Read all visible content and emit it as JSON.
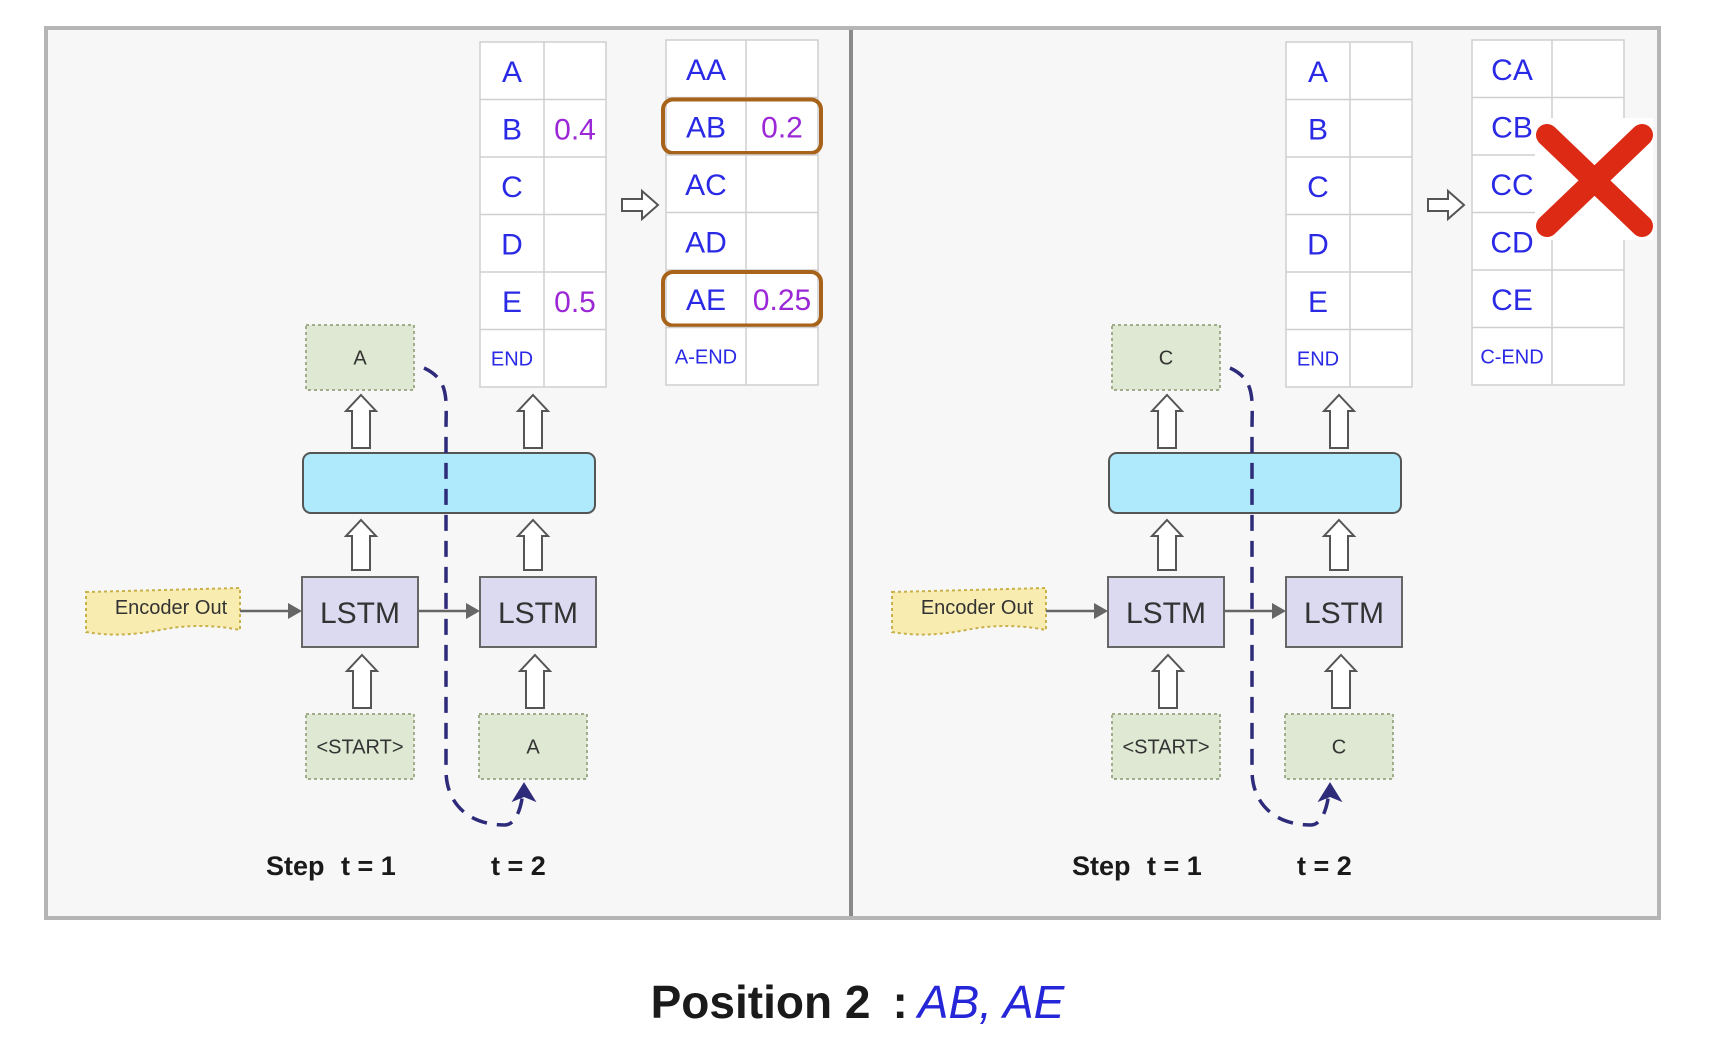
{
  "panels": [
    {
      "id": "left",
      "output_token": "A",
      "input_tokens": [
        "<START>",
        "A"
      ],
      "encoder_label": "Encoder Out",
      "lstm_label": "LSTM",
      "steps": {
        "prefix": "Step",
        "t1": "t = 1",
        "t2": "t = 2"
      },
      "vocab_table": [
        {
          "token": "A",
          "prob": ""
        },
        {
          "token": "B",
          "prob": "0.4"
        },
        {
          "token": "C",
          "prob": ""
        },
        {
          "token": "D",
          "prob": ""
        },
        {
          "token": "E",
          "prob": "0.5"
        },
        {
          "token": "END",
          "prob": ""
        }
      ],
      "seq_table": [
        {
          "token": "AA",
          "prob": "",
          "selected": false
        },
        {
          "token": "AB",
          "prob": "0.2",
          "selected": true
        },
        {
          "token": "AC",
          "prob": "",
          "selected": false
        },
        {
          "token": "AD",
          "prob": "",
          "selected": false
        },
        {
          "token": "AE",
          "prob": "0.25",
          "selected": true
        },
        {
          "token": "A-END",
          "prob": "",
          "selected": false
        }
      ],
      "rejected": false
    },
    {
      "id": "right",
      "output_token": "C",
      "input_tokens": [
        "<START>",
        "C"
      ],
      "encoder_label": "Encoder Out",
      "lstm_label": "LSTM",
      "steps": {
        "prefix": "Step",
        "t1": "t = 1",
        "t2": "t = 2"
      },
      "vocab_table": [
        {
          "token": "A",
          "prob": ""
        },
        {
          "token": "B",
          "prob": ""
        },
        {
          "token": "C",
          "prob": ""
        },
        {
          "token": "D",
          "prob": ""
        },
        {
          "token": "E",
          "prob": ""
        },
        {
          "token": "END",
          "prob": ""
        }
      ],
      "seq_table": [
        {
          "token": "CA",
          "prob": "",
          "selected": false
        },
        {
          "token": "CB",
          "prob": "",
          "selected": false
        },
        {
          "token": "CC",
          "prob": "",
          "selected": false
        },
        {
          "token": "CD",
          "prob": "",
          "selected": false
        },
        {
          "token": "CE",
          "prob": "",
          "selected": false
        },
        {
          "token": "C-END",
          "prob": "",
          "selected": false
        }
      ],
      "rejected": true
    }
  ],
  "caption": {
    "label": "Position 2",
    "colon": ":",
    "value": "AB, AE"
  },
  "colors": {
    "token_text": "#2a2ae6",
    "prob_text": "#9b27d6",
    "selected_border": "#a8631a",
    "dense_fill": "#aeeafc",
    "lstm_fill": "#dcdaf0",
    "token_box_fill": "#dfe8d2",
    "encoder_fill": "#f8ecb0",
    "reject_mark": "#dd2a14",
    "dashed_path": "#2d2b7a"
  },
  "icons": {
    "reject": "red-x-icon",
    "transform": "right-hollow-arrow-icon",
    "flow": "up-hollow-arrow-icon"
  }
}
